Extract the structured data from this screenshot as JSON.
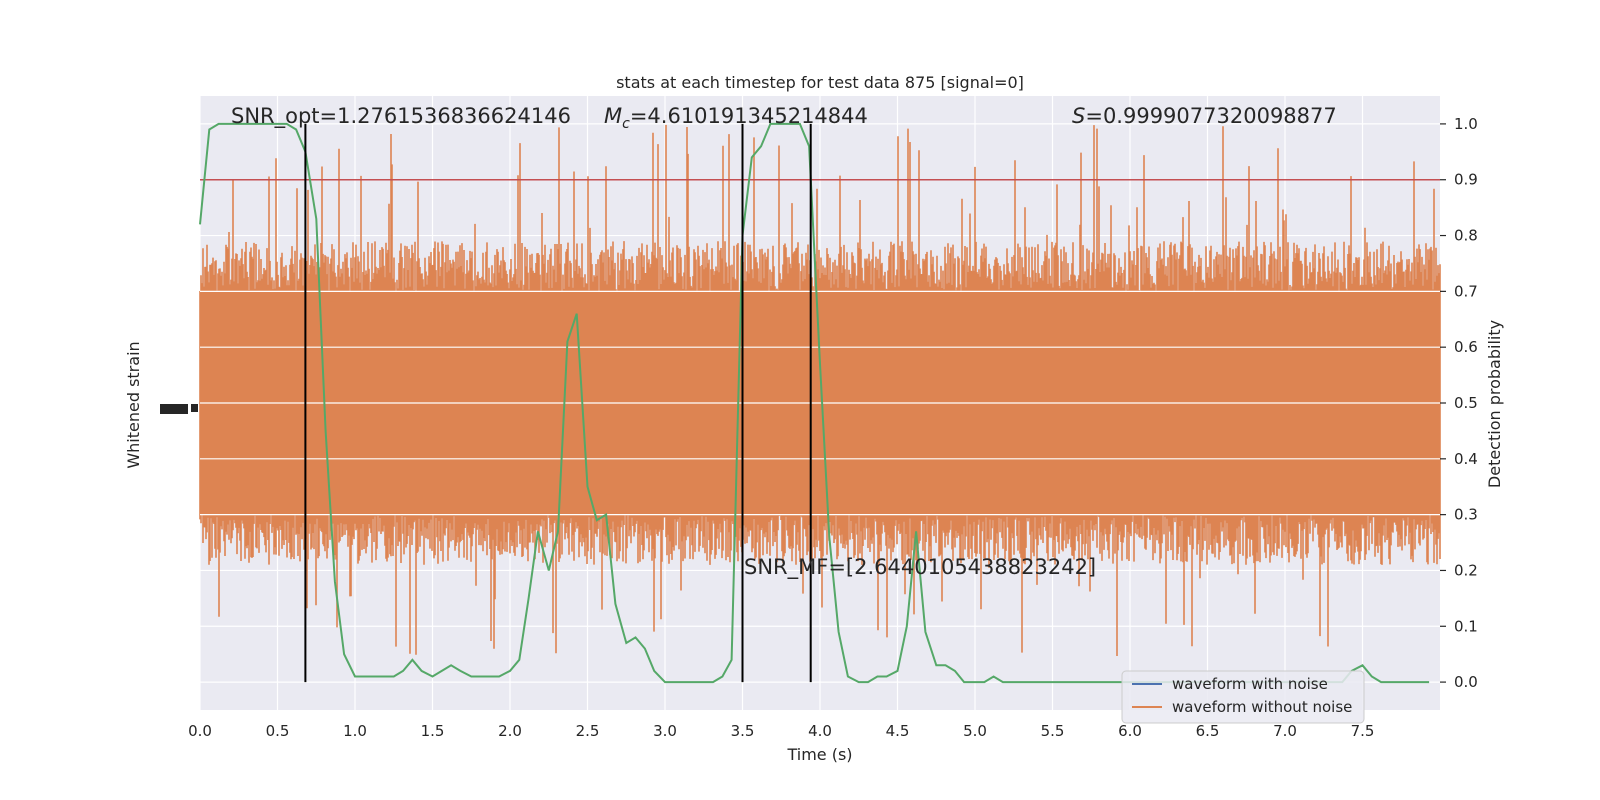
{
  "chart_data": {
    "type": "line",
    "title": "stats at each timestep for test data 875 [signal=0]",
    "xlabel": "Time (s)",
    "ylabel_left": "Whitened strain",
    "ylabel_right": "Detection probability",
    "xlim": [
      0.0,
      8.0
    ],
    "ylim_right": [
      -0.05,
      1.05
    ],
    "x_ticks": [
      0.0,
      0.5,
      1.0,
      1.5,
      2.0,
      2.5,
      3.0,
      3.5,
      4.0,
      4.5,
      5.0,
      5.5,
      6.0,
      6.5,
      7.0,
      7.5
    ],
    "x_tick_labels": [
      "0.0",
      "0.5",
      "1.0",
      "1.5",
      "2.0",
      "2.5",
      "3.0",
      "3.5",
      "4.0",
      "4.5",
      "5.0",
      "5.5",
      "6.0",
      "6.5",
      "7.0",
      "7.5"
    ],
    "y_right_ticks": [
      0.0,
      0.1,
      0.2,
      0.3,
      0.4,
      0.5,
      0.6,
      0.7,
      0.8,
      0.9,
      1.0
    ],
    "y_right_tick_labels": [
      "0.0",
      "0.1",
      "0.2",
      "0.3",
      "0.4",
      "0.5",
      "0.6",
      "0.7",
      "0.8",
      "0.9",
      "1.0"
    ],
    "grid": true,
    "threshold": 0.9,
    "vertical_lines_x": [
      0.68,
      3.5,
      3.94
    ],
    "annotations": {
      "snr_opt": "SNR_opt=1.2761536836624146",
      "mc_symbol": "M",
      "mc_subscript": "c",
      "mc_value": "=4.610191345214844",
      "s_symbol": "S",
      "s_value": "=0.9999077320098877",
      "snr_mf": "SNR_MF=[2.6440105438823242]"
    },
    "legend": {
      "placement": "lower-right",
      "entries": [
        "waveform with noise",
        "waveform without noise"
      ]
    },
    "series": [
      {
        "name": "waveform with noise",
        "color": "#4c72b0",
        "amplitude_band": [
          0.3,
          0.7
        ],
        "spikes_up_max": 1.0,
        "spikes_down_min": 0.02
      },
      {
        "name": "waveform without noise",
        "color": "#dd8452"
      },
      {
        "color": "#55a868",
        "x": [
          0.0,
          0.06,
          0.12,
          0.19,
          0.25,
          0.31,
          0.37,
          0.44,
          0.5,
          0.56,
          0.62,
          0.68,
          0.75,
          0.81,
          0.87,
          0.93,
          1.0,
          1.06,
          1.12,
          1.18,
          1.25,
          1.31,
          1.37,
          1.43,
          1.5,
          1.56,
          1.62,
          1.68,
          1.75,
          1.81,
          1.87,
          1.93,
          2.0,
          2.06,
          2.12,
          2.18,
          2.25,
          2.31,
          2.37,
          2.43,
          2.5,
          2.56,
          2.62,
          2.68,
          2.75,
          2.81,
          2.87,
          2.93,
          3.0,
          3.06,
          3.12,
          3.18,
          3.25,
          3.31,
          3.37,
          3.43,
          3.5,
          3.56,
          3.62,
          3.68,
          3.75,
          3.81,
          3.87,
          3.93,
          4.0,
          4.06,
          4.12,
          4.18,
          4.25,
          4.31,
          4.37,
          4.43,
          4.5,
          4.56,
          4.62,
          4.68,
          4.75,
          4.81,
          4.87,
          4.93,
          5.0,
          5.06,
          5.12,
          5.18,
          5.25,
          5.31,
          5.37,
          5.43,
          5.5,
          5.56,
          5.62,
          5.68,
          5.75,
          5.81,
          5.87,
          5.93,
          6.0,
          6.06,
          6.12,
          6.18,
          6.25,
          6.31,
          6.37,
          6.43,
          6.5,
          6.56,
          6.62,
          6.68,
          6.75,
          6.81,
          6.87,
          6.93,
          7.0,
          7.06,
          7.12,
          7.18,
          7.25,
          7.31,
          7.37,
          7.43,
          7.5,
          7.56,
          7.62,
          7.68,
          7.75,
          7.81,
          7.87,
          7.93
        ],
        "values": [
          0.82,
          0.99,
          1.0,
          1.0,
          1.0,
          1.0,
          1.0,
          1.0,
          1.0,
          1.0,
          0.99,
          0.95,
          0.83,
          0.45,
          0.18,
          0.05,
          0.01,
          0.01,
          0.01,
          0.01,
          0.01,
          0.02,
          0.04,
          0.02,
          0.01,
          0.02,
          0.03,
          0.02,
          0.01,
          0.01,
          0.01,
          0.01,
          0.02,
          0.04,
          0.15,
          0.27,
          0.2,
          0.27,
          0.61,
          0.66,
          0.35,
          0.29,
          0.3,
          0.14,
          0.07,
          0.08,
          0.06,
          0.02,
          0.0,
          0.0,
          0.0,
          0.0,
          0.0,
          0.0,
          0.01,
          0.04,
          0.8,
          0.94,
          0.96,
          1.0,
          1.0,
          1.0,
          1.0,
          0.96,
          0.57,
          0.26,
          0.09,
          0.01,
          0.0,
          0.0,
          0.01,
          0.01,
          0.02,
          0.1,
          0.27,
          0.09,
          0.03,
          0.03,
          0.02,
          0.0,
          0.0,
          0.0,
          0.01,
          0.0,
          0.0,
          0.0,
          0.0,
          0.0,
          0.0,
          0.0,
          0.0,
          0.0,
          0.0,
          0.0,
          0.0,
          0.0,
          0.0,
          0.0,
          0.0,
          0.0,
          0.0,
          0.0,
          0.0,
          0.0,
          0.0,
          0.0,
          0.0,
          0.0,
          0.0,
          0.0,
          0.0,
          0.0,
          0.0,
          0.0,
          0.0,
          0.0,
          0.0,
          0.0,
          0.0,
          0.02,
          0.03,
          0.01,
          0.0,
          0.0,
          0.0,
          0.0,
          0.0,
          0.0
        ]
      }
    ],
    "colors": {
      "background": "#eaeaf2",
      "grid": "#ffffff",
      "threshold_line": "#c44e52",
      "vertical_lines": "#000000"
    }
  }
}
